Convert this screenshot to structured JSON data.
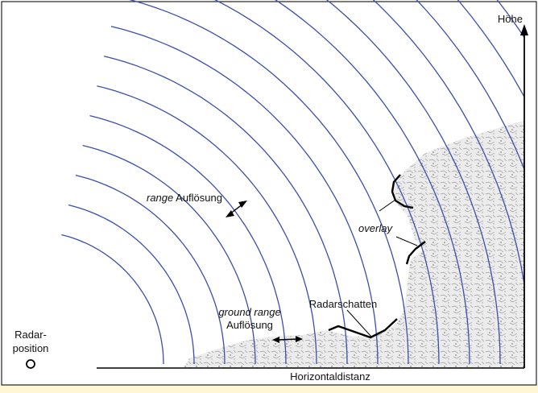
{
  "labels": {
    "vertical_axis": "Höhe",
    "horizontal_axis": "Horizontaldistanz",
    "radar_position_line1": "Radar-",
    "radar_position_line2": "position",
    "range_resolution_italic": "range",
    "range_resolution_rest": " Auflösung",
    "ground_range_line1": "ground range",
    "ground_range_line2": "Auflösung",
    "radar_shadow": "Radarschatten",
    "overlay": "overlay"
  },
  "colors": {
    "wavefront": "#3a4fae",
    "frame": "#222222",
    "terrain": "#e6e6e6",
    "accent_background": "#fff6d6",
    "outline": "#000000"
  },
  "wavefront_count": 17
}
